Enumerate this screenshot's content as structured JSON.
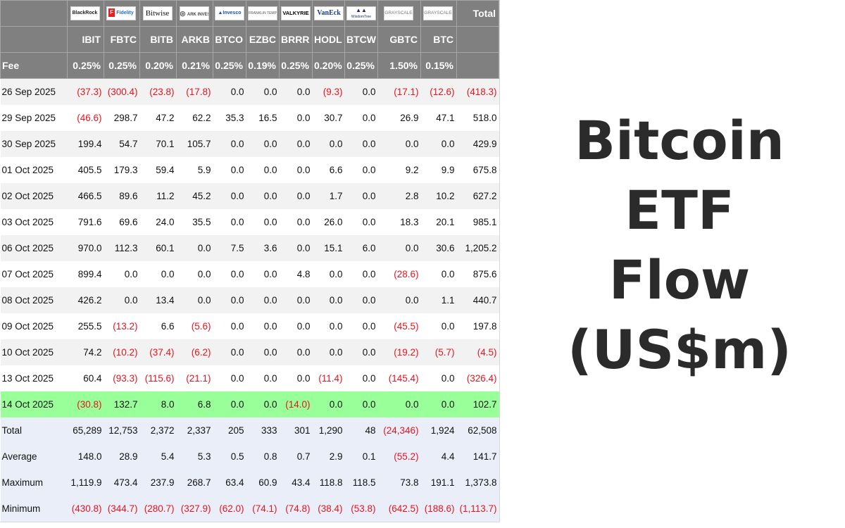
{
  "title": {
    "lines": [
      "Bitcoin",
      "ETF",
      "Flow",
      "(US$m)"
    ]
  },
  "table": {
    "total_header": "Total",
    "fee_label": "Fee",
    "columns": [
      {
        "issuer": "BlackRock",
        "ticker": "IBIT",
        "fee": "0.25%"
      },
      {
        "issuer": "Fidelity",
        "ticker": "FBTC",
        "fee": "0.25%"
      },
      {
        "issuer": "Bitwise",
        "ticker": "BITB",
        "fee": "0.20%"
      },
      {
        "issuer": "ARK INVEST",
        "ticker": "ARKB",
        "fee": "0.21%"
      },
      {
        "issuer": "Invesco",
        "ticker": "BTCO",
        "fee": "0.25%"
      },
      {
        "issuer": "FRANKLIN TEMPLETON",
        "ticker": "EZBC",
        "fee": "0.19%"
      },
      {
        "issuer": "VALKYRIE",
        "ticker": "BRRR",
        "fee": "0.25%"
      },
      {
        "issuer": "VanEck",
        "ticker": "HODL",
        "fee": "0.20%"
      },
      {
        "issuer": "WisdomTree",
        "ticker": "BTCW",
        "fee": "0.25%"
      },
      {
        "issuer": "GRAYSCALE",
        "ticker": "GBTC",
        "fee": "1.50%"
      },
      {
        "issuer": "GRAYSCALE",
        "ticker": "BTC",
        "fee": "0.15%"
      }
    ],
    "rows": [
      {
        "date": "26 Sep 2025",
        "values": [
          "(37.3)",
          "(300.4)",
          "(23.8)",
          "(17.8)",
          "0.0",
          "0.0",
          "0.0",
          "(9.3)",
          "0.0",
          "(17.1)",
          "(12.6)",
          "(418.3)"
        ]
      },
      {
        "date": "29 Sep 2025",
        "values": [
          "(46.6)",
          "298.7",
          "47.2",
          "62.2",
          "35.3",
          "16.5",
          "0.0",
          "30.7",
          "0.0",
          "26.9",
          "47.1",
          "518.0"
        ]
      },
      {
        "date": "30 Sep 2025",
        "values": [
          "199.4",
          "54.7",
          "70.1",
          "105.7",
          "0.0",
          "0.0",
          "0.0",
          "0.0",
          "0.0",
          "0.0",
          "0.0",
          "429.9"
        ]
      },
      {
        "date": "01 Oct 2025",
        "values": [
          "405.5",
          "179.3",
          "59.4",
          "5.9",
          "0.0",
          "0.0",
          "0.0",
          "6.6",
          "0.0",
          "9.2",
          "9.9",
          "675.8"
        ]
      },
      {
        "date": "02 Oct 2025",
        "values": [
          "466.5",
          "89.6",
          "11.2",
          "45.2",
          "0.0",
          "0.0",
          "0.0",
          "1.7",
          "0.0",
          "2.8",
          "10.2",
          "627.2"
        ]
      },
      {
        "date": "03 Oct 2025",
        "values": [
          "791.6",
          "69.6",
          "24.0",
          "35.5",
          "0.0",
          "0.0",
          "0.0",
          "26.0",
          "0.0",
          "18.3",
          "20.1",
          "985.1"
        ]
      },
      {
        "date": "06 Oct 2025",
        "values": [
          "970.0",
          "112.3",
          "60.1",
          "0.0",
          "7.5",
          "3.6",
          "0.0",
          "15.1",
          "6.0",
          "0.0",
          "30.6",
          "1,205.2"
        ]
      },
      {
        "date": "07 Oct 2025",
        "values": [
          "899.4",
          "0.0",
          "0.0",
          "0.0",
          "0.0",
          "0.0",
          "4.8",
          "0.0",
          "0.0",
          "(28.6)",
          "0.0",
          "875.6"
        ]
      },
      {
        "date": "08 Oct 2025",
        "values": [
          "426.2",
          "0.0",
          "13.4",
          "0.0",
          "0.0",
          "0.0",
          "0.0",
          "0.0",
          "0.0",
          "0.0",
          "1.1",
          "440.7"
        ]
      },
      {
        "date": "09 Oct 2025",
        "values": [
          "255.5",
          "(13.2)",
          "6.6",
          "(5.6)",
          "0.0",
          "0.0",
          "0.0",
          "0.0",
          "0.0",
          "(45.5)",
          "0.0",
          "197.8"
        ]
      },
      {
        "date": "10 Oct 2025",
        "values": [
          "74.2",
          "(10.2)",
          "(37.4)",
          "(6.2)",
          "0.0",
          "0.0",
          "0.0",
          "0.0",
          "0.0",
          "(19.2)",
          "(5.7)",
          "(4.5)"
        ]
      },
      {
        "date": "13 Oct 2025",
        "values": [
          "60.4",
          "(93.3)",
          "(115.6)",
          "(21.1)",
          "0.0",
          "0.0",
          "0.0",
          "(11.4)",
          "0.0",
          "(145.4)",
          "0.0",
          "(326.4)"
        ]
      },
      {
        "date": "14 Oct 2025",
        "values": [
          "(30.8)",
          "132.7",
          "8.0",
          "6.8",
          "0.0",
          "0.0",
          "(14.0)",
          "0.0",
          "0.0",
          "0.0",
          "0.0",
          "102.7"
        ],
        "highlight": true
      }
    ],
    "stats": [
      {
        "label": "Total",
        "values": [
          "65,289",
          "12,753",
          "2,372",
          "2,337",
          "205",
          "333",
          "301",
          "1,290",
          "48",
          "(24,346)",
          "1,924",
          "62,508"
        ]
      },
      {
        "label": "Average",
        "values": [
          "148.0",
          "28.9",
          "5.4",
          "5.3",
          "0.5",
          "0.8",
          "0.7",
          "2.9",
          "0.1",
          "(55.2)",
          "4.4",
          "141.7"
        ]
      },
      {
        "label": "Maximum",
        "values": [
          "1,119.9",
          "473.4",
          "237.9",
          "268.7",
          "63.4",
          "60.9",
          "43.4",
          "118.8",
          "118.5",
          "73.8",
          "191.1",
          "1,373.8"
        ]
      },
      {
        "label": "Minimum",
        "values": [
          "(430.8)",
          "(344.7)",
          "(280.7)",
          "(327.9)",
          "(62.0)",
          "(74.1)",
          "(74.8)",
          "(38.4)",
          "(53.8)",
          "(642.5)",
          "(188.6)",
          "(1,113.7)"
        ]
      }
    ]
  },
  "colors": {
    "header_bg": "#808080",
    "negative": "#e8141e",
    "highlight_row": "#99ff99",
    "stats_bg": "#e9eef8",
    "title_text": "#2b2b2b"
  }
}
